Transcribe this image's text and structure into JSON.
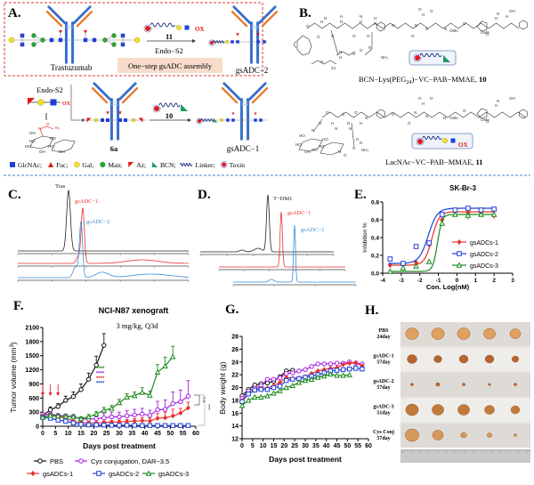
{
  "panels": {
    "A": "A.",
    "B": "B.",
    "C": "C.",
    "D": "D.",
    "E": "E.",
    "F": "F.",
    "G": "G.",
    "H": "H."
  },
  "panel_a": {
    "trastuzumab": "Trastuzumab",
    "reagent_top": "11",
    "enzyme_top": "Endo−S2",
    "one_step_box": "One−step gsADC assembly",
    "product_top": "gsADC−2",
    "enzyme_bottom": "Endo-S2",
    "ox_label": "OX",
    "equals": "||",
    "intermediate": "6a",
    "reagent_bottom": "10",
    "product_bottom": "gsADC−1",
    "chem_labels": [
      "OH",
      "HO",
      "HO",
      "OH",
      "HO",
      "HO",
      "OH",
      "N",
      "O",
      "N₃"
    ],
    "legend": [
      {
        "shape": "square",
        "color": "#1f3fd8",
        "label": "GlcNAc;"
      },
      {
        "shape": "triangle",
        "color": "#e01b1b",
        "label": "Fuc;"
      },
      {
        "shape": "circle",
        "color": "#f2e21a",
        "label": "Gal;"
      },
      {
        "shape": "circle",
        "color": "#1faa2e",
        "label": "Man;"
      },
      {
        "shape": "az",
        "color": "#e01b1b",
        "label": "Az;"
      },
      {
        "shape": "bcn",
        "color": "#1a9a6a",
        "label": "BCN;"
      },
      {
        "shape": "linker",
        "color": "#1b2a7a",
        "label": "Linker;"
      },
      {
        "shape": "toxin",
        "color": "#e01b1b",
        "label": "Toxin"
      }
    ],
    "colors": {
      "glcnac": "#1f3fd8",
      "fuc": "#e01b1b",
      "gal": "#f2e21a",
      "man": "#1faa2e",
      "heavy_chain": "#3a6fc9",
      "light_chain": "#e8782a",
      "dashed_box": "#e0352f",
      "assembly_box": "#f7dccb"
    }
  },
  "panel_b": {
    "compound10": {
      "prefix": "BCN−Lys(PEG",
      "sub": "24",
      "suffix": ")−VC−PAB−MMAE, ",
      "num": "10"
    },
    "compound11": {
      "prefix": "LacNAc−VC−PAB−MMAE, ",
      "num": "11"
    },
    "atoms10": [
      "O",
      "O",
      "H",
      "N",
      "O",
      "N",
      "H",
      "O",
      "H",
      "N",
      "O",
      "N",
      "H",
      "O",
      "O",
      "N",
      "O",
      "H",
      "N",
      "O",
      "N",
      "OMe",
      "O",
      "OMe",
      "O",
      "H",
      "N",
      "OH",
      "H",
      "N",
      "O",
      "N",
      "H",
      "NH₂",
      "O",
      "O",
      "24"
    ],
    "atoms11": [
      "O",
      "N",
      "O",
      "H",
      "N",
      "O",
      "N",
      "H",
      "O",
      "H",
      "N",
      "O",
      "O",
      "N",
      "O",
      "H",
      "N",
      "O",
      "N",
      "OMe",
      "O",
      "OMe",
      "O",
      "H",
      "N",
      "OH",
      "HO",
      "HO",
      "OH",
      "OH",
      "HO",
      "HO",
      "N",
      "O",
      "H",
      "N",
      "O",
      "NH₂"
    ],
    "ox_label": "OX"
  },
  "panel_c": {
    "traces": [
      {
        "label": "Tras",
        "color": "#222222"
      },
      {
        "label": "gsADC−1",
        "color": "#e8302c"
      },
      {
        "label": "gsADC−2",
        "color": "#3a8fd6"
      }
    ]
  },
  "panel_d": {
    "traces": [
      {
        "label": "T−DM1",
        "color": "#222222"
      },
      {
        "label": "gsADC−1",
        "color": "#e8302c"
      },
      {
        "label": "gsADC−2",
        "color": "#3a8fd6"
      }
    ]
  },
  "chart_data": [
    {
      "id": "E",
      "type": "scatter",
      "title": "SK-Br-3",
      "xlabel": "Con. Log(nM)",
      "ylabel": "Inhibition %",
      "xlim": [
        -4,
        3
      ],
      "ylim": [
        0,
        0.8
      ],
      "xticks": [
        "-4",
        "-3",
        "-2",
        "-1",
        "0",
        "1",
        "2",
        "3"
      ],
      "yticks": [
        "0.0",
        "0.2",
        "0.4",
        "0.6",
        "0.8"
      ],
      "legend": "center-right",
      "fit": "sigmoidal",
      "x": [
        -3.6,
        -2.9,
        -2.2,
        -1.5,
        -0.8,
        -0.1,
        0.6,
        1.3,
        2.0
      ],
      "series": [
        {
          "name": "gsADCs-1",
          "color": "#e8302c",
          "marker": "diamond",
          "values": [
            0.09,
            0.1,
            0.12,
            0.32,
            0.6,
            0.69,
            0.68,
            0.68,
            0.65
          ],
          "err": [
            0.03,
            0.03,
            0.03,
            0.02,
            0.03,
            0.02,
            0.03,
            0.02,
            0.04
          ]
        },
        {
          "name": "gsADCs-2",
          "color": "#1f3fd8",
          "marker": "square",
          "values": [
            0.16,
            0.11,
            0.3,
            0.34,
            0.66,
            0.71,
            0.73,
            0.71,
            0.72
          ],
          "err": [
            0.01,
            0.02,
            0.02,
            0.02,
            0.02,
            0.01,
            0.01,
            0.01,
            0.01
          ]
        },
        {
          "name": "gsADCs-3",
          "color": "#1a8a1a",
          "marker": "triangle",
          "values": [
            0.02,
            0.06,
            0.08,
            0.13,
            0.56,
            0.66,
            0.65,
            0.66,
            0.66
          ],
          "err": [
            0.01,
            0.01,
            0.02,
            0.02,
            0.03,
            0.02,
            0.05,
            0.02,
            0.02
          ]
        }
      ]
    },
    {
      "id": "F",
      "type": "line",
      "title": "NCI-N87 xenograft",
      "subtitle": "3 mg/kg, Q3d",
      "xlabel": "Days post treatment",
      "ylabel": "Tumor volume (mm",
      "ylabel_sup": "3",
      "ylabel_end": ")",
      "xlim": [
        0,
        60
      ],
      "ylim": [
        0,
        2100
      ],
      "xticks": [
        "0",
        "5",
        "10",
        "15",
        "20",
        "25",
        "30",
        "35",
        "40",
        "45",
        "50",
        "55",
        "60"
      ],
      "yticks": [
        "0",
        "300",
        "600",
        "900",
        "1200",
        "1500",
        "1800",
        "2100"
      ],
      "dosing_days": [
        0,
        3,
        6
      ],
      "significance": {
        "stars": "****",
        "ns": "n.s.",
        "bracket_stars": "****"
      },
      "series": [
        {
          "name": "PBS",
          "color": "#111111",
          "marker": "circle",
          "x": [
            0,
            3,
            6,
            9,
            12,
            15,
            18,
            21,
            24
          ],
          "values": [
            230,
            350,
            420,
            550,
            630,
            780,
            1000,
            1300,
            1720
          ],
          "err": [
            40,
            60,
            60,
            90,
            100,
            120,
            130,
            190,
            250
          ]
        },
        {
          "name": "Cys conjugation, DAR~3.5",
          "color": "#a020e0",
          "marker": "circle",
          "x": [
            0,
            3,
            6,
            9,
            12,
            15,
            18,
            21,
            24,
            27,
            30,
            33,
            36,
            39,
            42,
            45,
            48,
            51,
            54,
            57
          ],
          "values": [
            250,
            260,
            230,
            220,
            210,
            160,
            150,
            160,
            180,
            200,
            200,
            220,
            240,
            260,
            230,
            350,
            360,
            480,
            520,
            640
          ],
          "err": [
            40,
            40,
            40,
            40,
            40,
            40,
            60,
            80,
            90,
            100,
            100,
            110,
            120,
            120,
            110,
            180,
            200,
            250,
            250,
            330
          ]
        },
        {
          "name": "gsADCs-1",
          "color": "#e8302c",
          "marker": "diamond",
          "x": [
            0,
            3,
            6,
            9,
            12,
            15,
            18,
            21,
            24,
            27,
            30,
            33,
            36,
            39,
            42,
            45,
            48,
            51,
            54,
            57
          ],
          "values": [
            210,
            230,
            200,
            180,
            100,
            80,
            70,
            70,
            80,
            90,
            90,
            100,
            110,
            120,
            110,
            170,
            180,
            220,
            280,
            390
          ],
          "err": [
            40,
            40,
            40,
            40,
            30,
            30,
            20,
            20,
            30,
            30,
            40,
            40,
            50,
            60,
            60,
            100,
            120,
            140,
            100,
            120
          ]
        },
        {
          "name": "gsADCs-2",
          "color": "#1f3fd8",
          "marker": "square",
          "x": [
            0,
            3,
            6,
            9,
            12,
            15,
            18,
            21,
            24,
            27,
            30,
            33,
            36,
            39,
            42,
            45,
            48,
            51,
            54,
            57
          ],
          "values": [
            190,
            170,
            130,
            110,
            70,
            40,
            30,
            30,
            25,
            20,
            20,
            20,
            20,
            15,
            15,
            15,
            15,
            15,
            15,
            15
          ],
          "err": [
            30,
            30,
            20,
            20,
            15,
            10,
            10,
            10,
            8,
            8,
            8,
            6,
            6,
            5,
            5,
            5,
            5,
            5,
            5,
            5
          ]
        },
        {
          "name": "gsADCs-3",
          "color": "#1a8a1a",
          "marker": "triangle",
          "x": [
            0,
            3,
            6,
            9,
            12,
            15,
            18,
            21,
            24,
            27,
            30,
            33,
            36,
            39,
            42,
            45,
            48,
            51
          ],
          "values": [
            190,
            230,
            220,
            210,
            200,
            160,
            200,
            260,
            340,
            380,
            500,
            620,
            650,
            720,
            660,
            1150,
            1280,
            1480
          ],
          "err": [
            30,
            40,
            40,
            40,
            40,
            40,
            50,
            50,
            60,
            60,
            70,
            70,
            80,
            100,
            90,
            160,
            190,
            220
          ]
        }
      ]
    },
    {
      "id": "G",
      "type": "line",
      "title": "",
      "xlabel": "Days post treatment",
      "ylabel": "Body weight (g)",
      "xlim": [
        0,
        60
      ],
      "ylim": [
        12,
        28
      ],
      "xticks": [
        "0",
        "5",
        "10",
        "15",
        "20",
        "25",
        "30",
        "35",
        "40",
        "45",
        "50",
        "55",
        "60"
      ],
      "yticks": [
        "12",
        "14",
        "16",
        "18",
        "20",
        "22",
        "24",
        "26",
        "28"
      ],
      "series": [
        {
          "name": "PBS",
          "color": "#111111",
          "marker": "circle",
          "x": [
            0,
            3,
            6,
            9,
            12,
            15,
            18,
            21,
            24
          ],
          "values": [
            18.7,
            19.7,
            20.4,
            20.6,
            20.7,
            21.0,
            21.7,
            22.6,
            22.7
          ]
        },
        {
          "name": "Cys conjugation, DAR~3.5",
          "color": "#a020e0",
          "marker": "circle",
          "x": [
            0,
            3,
            6,
            9,
            12,
            15,
            18,
            21,
            24,
            27,
            30,
            33,
            36,
            39,
            42,
            45,
            48,
            51,
            54,
            57
          ],
          "values": [
            18.3,
            19.4,
            19.9,
            20.3,
            21.3,
            21.3,
            21.5,
            22.2,
            22.3,
            22.6,
            22.8,
            23.3,
            23.7,
            23.7,
            23.7,
            23.8,
            23.8,
            24.0,
            23.8,
            23.7
          ]
        },
        {
          "name": "gsADCs-1",
          "color": "#e8302c",
          "marker": "diamond",
          "x": [
            0,
            3,
            6,
            9,
            12,
            15,
            18,
            21,
            24,
            27,
            30,
            33,
            36,
            39,
            42,
            45,
            48,
            51,
            54,
            57
          ],
          "values": [
            18.0,
            19.0,
            19.7,
            19.9,
            19.9,
            20.3,
            20.8,
            21.6,
            21.4,
            21.5,
            21.7,
            22.2,
            22.6,
            22.8,
            23.0,
            23.1,
            23.6,
            23.8,
            23.9,
            23.4
          ]
        },
        {
          "name": "gsADCs-2",
          "color": "#1f3fd8",
          "marker": "square",
          "x": [
            0,
            3,
            6,
            9,
            12,
            15,
            18,
            21,
            24,
            27,
            30,
            33,
            36,
            39,
            42,
            45,
            48,
            51,
            54,
            57
          ],
          "values": [
            17.8,
            19.0,
            19.6,
            19.7,
            19.7,
            20.0,
            20.2,
            21.1,
            21.3,
            21.4,
            21.6,
            21.8,
            22.0,
            22.3,
            22.6,
            22.7,
            22.8,
            22.9,
            23.0,
            22.9
          ]
        },
        {
          "name": "gsADCs-3",
          "color": "#1a8a1a",
          "marker": "triangle",
          "x": [
            0,
            3,
            6,
            9,
            12,
            15,
            18,
            21,
            24,
            27,
            30,
            33,
            36,
            39,
            42,
            45,
            48,
            51
          ],
          "values": [
            17.2,
            18.0,
            18.5,
            18.5,
            18.7,
            19.1,
            19.5,
            20.0,
            20.3,
            20.8,
            21.1,
            21.3,
            21.6,
            21.8,
            22.1,
            21.9,
            21.9,
            22.0
          ]
        }
      ]
    }
  ],
  "panel_h": {
    "rows": [
      {
        "label1": "PBS",
        "label2": "24day"
      },
      {
        "label1": "gsADC-1",
        "label2": "57day"
      },
      {
        "label1": "gsADC-2",
        "label2": "57day"
      },
      {
        "label1": "gsADC-3",
        "label2": "51day"
      },
      {
        "label1": "Cys Conj",
        "label2": "57day"
      }
    ]
  }
}
